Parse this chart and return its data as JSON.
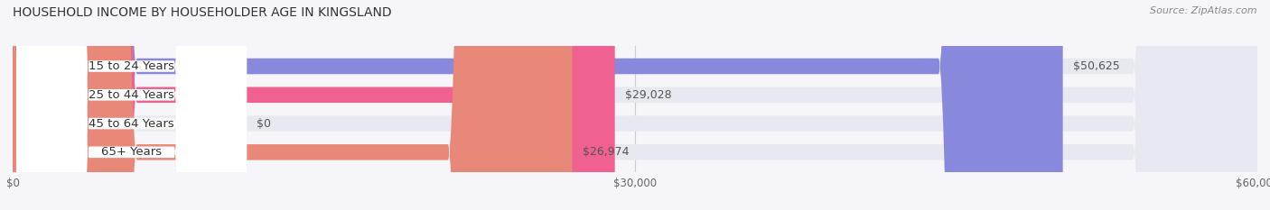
{
  "title": "HOUSEHOLD INCOME BY HOUSEHOLDER AGE IN KINGSLAND",
  "source": "Source: ZipAtlas.com",
  "categories": [
    "15 to 24 Years",
    "25 to 44 Years",
    "45 to 64 Years",
    "65+ Years"
  ],
  "values": [
    50625,
    29028,
    0,
    26974
  ],
  "bar_colors": [
    "#8888dd",
    "#f06090",
    "#f5c896",
    "#e88878"
  ],
  "bar_bg_color": "#e8e8f0",
  "value_labels": [
    "$50,625",
    "$29,028",
    "$0",
    "$26,974"
  ],
  "xlim": [
    0,
    60000
  ],
  "xticks": [
    0,
    30000,
    60000
  ],
  "xticklabels": [
    "$0",
    "$30,000",
    "$60,000"
  ],
  "figsize": [
    14.06,
    2.33
  ],
  "dpi": 100,
  "bg_color": "#f5f5fa",
  "bar_height": 0.55,
  "title_fontsize": 10,
  "label_fontsize": 9.5,
  "value_fontsize": 9,
  "source_fontsize": 8
}
